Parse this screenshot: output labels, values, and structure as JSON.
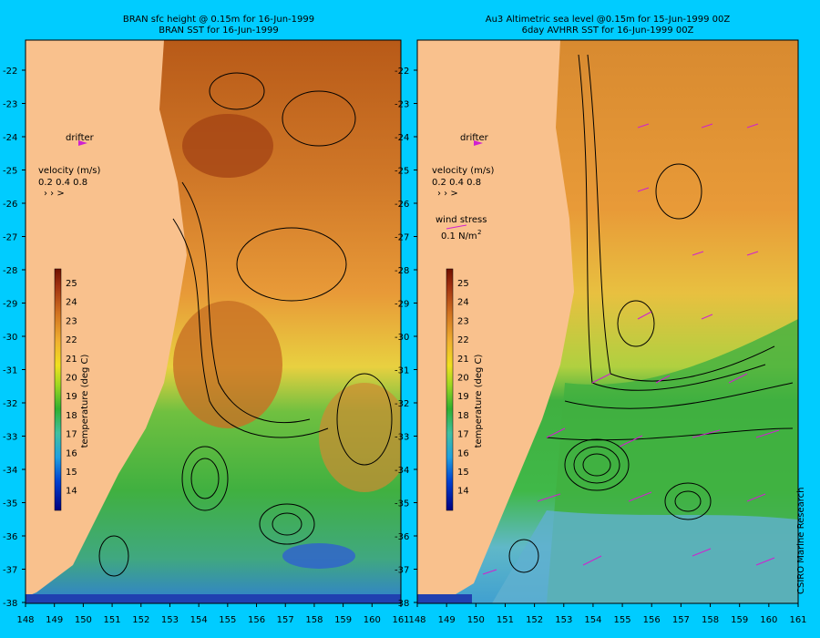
{
  "left_panel": {
    "title_line1": "BRAN sfc height @ 0.15m  for 16-Jun-1999",
    "title_line2": "BRAN SST for 16-Jun-1999",
    "drifter_label": "drifter",
    "velocity_label": "velocity (m/s)",
    "velocity_scale": "0.2 0.4 0.8"
  },
  "right_panel": {
    "title_line1": "Au3 Altimetric sea level  @0.15m  for 15-Jun-1999 00Z",
    "title_line2": "6day AVHRR SST for 16-Jun-1999 00Z",
    "drifter_label": "drifter",
    "velocity_label": "velocity (m/s)",
    "velocity_scale": "0.2 0.4 0.8",
    "wind_label": "wind stress",
    "wind_scale": "0.1 N/m",
    "wind_scale_sup": "2",
    "credit": "CSIRO Marine Research"
  },
  "colorbar": {
    "label": "temperature (deg C)",
    "ticks": [
      "25",
      "24",
      "23",
      "22",
      "21",
      "20",
      "19",
      "18",
      "17",
      "16",
      "15",
      "14"
    ]
  },
  "y_axis_ticks": [
    "-22",
    "-23",
    "-24",
    "-25",
    "-26",
    "-27",
    "-28",
    "-29",
    "-30",
    "-31",
    "-32",
    "-33",
    "-34",
    "-35",
    "-36",
    "-37",
    "-38"
  ],
  "x_axis_ticks": [
    "148",
    "149",
    "150",
    "151",
    "152",
    "153",
    "154",
    "155",
    "156",
    "157",
    "158",
    "159",
    "160",
    "161"
  ],
  "colors": {
    "background": "#00ccff",
    "land": "#f9c18d",
    "warm": "#c05a10",
    "mid": "#f0a838",
    "yellow": "#e8e040",
    "green": "#30b040",
    "cool": "#40a0e0",
    "arrow": "#d020d0"
  }
}
